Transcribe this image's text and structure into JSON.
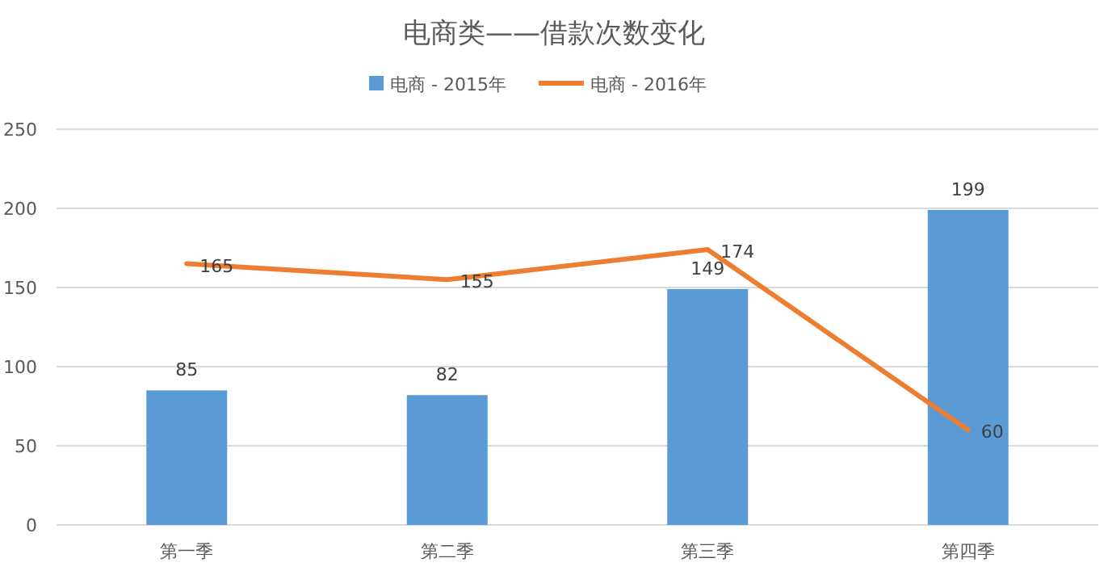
{
  "chart_data": {
    "type": "bar",
    "title": "电商类——借款次数变化",
    "categories": [
      "第一季",
      "第二季",
      "第三季",
      "第四季"
    ],
    "series": [
      {
        "name": "电商 - 2015年",
        "color": "#5b9bd5",
        "values": [
          85,
          82,
          149,
          199
        ]
      },
      {
        "name": "电商 - 2016年",
        "type": "line",
        "color": "#ed7d31",
        "values": [
          165,
          155,
          174,
          60
        ]
      }
    ],
    "ylim": [
      0,
      250
    ],
    "yticks": [
      0,
      50,
      100,
      150,
      200,
      250
    ],
    "grid": "y",
    "legend": "top",
    "data_labels": true
  }
}
